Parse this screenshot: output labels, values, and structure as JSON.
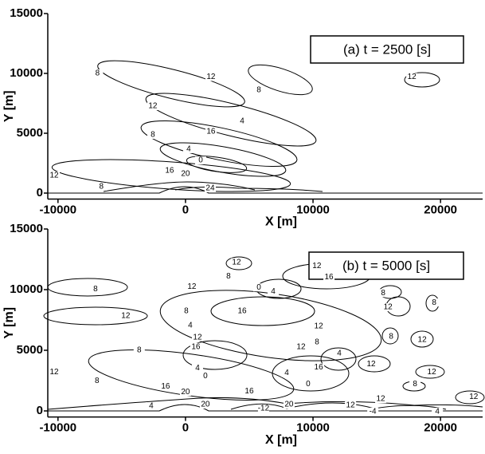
{
  "chart_data": [
    {
      "type": "contour",
      "title": "(a) t = 2500 [s]",
      "x_label": "X [m]",
      "y_label": "Y [m]",
      "xlim": [
        -10800,
        23300
      ],
      "ylim": [
        -500,
        15000
      ],
      "xticks": [
        -10000,
        0,
        10000,
        20000
      ],
      "yticks": [
        0,
        5000,
        10000,
        15000
      ],
      "contour_labels": [
        {
          "x": -6900,
          "y": 10000,
          "value": 8
        },
        {
          "x": 2000,
          "y": 9700,
          "value": 12
        },
        {
          "x": 5750,
          "y": 8600,
          "value": 8
        },
        {
          "x": 17750,
          "y": 9700,
          "value": 12
        },
        {
          "x": -2560,
          "y": 7270,
          "value": 12
        },
        {
          "x": 4440,
          "y": 6000,
          "value": 4
        },
        {
          "x": 2000,
          "y": 5130,
          "value": 16
        },
        {
          "x": -2560,
          "y": 4870,
          "value": 8
        },
        {
          "x": -10300,
          "y": 1470,
          "value": 12
        },
        {
          "x": 250,
          "y": 3670,
          "value": 4
        },
        {
          "x": 1190,
          "y": 2730,
          "value": 0
        },
        {
          "x": -1250,
          "y": 1870,
          "value": 16
        },
        {
          "x": 0,
          "y": 1600,
          "value": 20
        },
        {
          "x": -6600,
          "y": 530,
          "value": 8
        },
        {
          "x": 1940,
          "y": 400,
          "value": 24
        }
      ]
    },
    {
      "type": "contour",
      "title": "(b) t = 5000 [s]",
      "x_label": "X [m]",
      "y_label": "Y [m]",
      "xlim": [
        -10800,
        23300
      ],
      "ylim": [
        -500,
        15000
      ],
      "xticks": [
        -10000,
        0,
        10000,
        20000
      ],
      "yticks": [
        0,
        5000,
        10000,
        15000
      ],
      "contour_labels": [
        {
          "x": 4000,
          "y": 12260,
          "value": 12
        },
        {
          "x": 3375,
          "y": 11090,
          "value": 8
        },
        {
          "x": 5750,
          "y": 10180,
          "value": 0
        },
        {
          "x": 6875,
          "y": 9850,
          "value": 4
        },
        {
          "x": 10300,
          "y": 11940,
          "value": 12
        },
        {
          "x": 11250,
          "y": 11020,
          "value": 16
        },
        {
          "x": -7060,
          "y": 10050,
          "value": 8
        },
        {
          "x": 500,
          "y": 10240,
          "value": 12
        },
        {
          "x": 15500,
          "y": 9720,
          "value": 8
        },
        {
          "x": 19500,
          "y": 8940,
          "value": 8
        },
        {
          "x": 15880,
          "y": 8550,
          "value": 12
        },
        {
          "x": 4440,
          "y": 8220,
          "value": 16
        },
        {
          "x": 60,
          "y": 8220,
          "value": 8
        },
        {
          "x": -4690,
          "y": 7830,
          "value": 12
        },
        {
          "x": 10440,
          "y": 6980,
          "value": 12
        },
        {
          "x": 375,
          "y": 7050,
          "value": 4
        },
        {
          "x": 10310,
          "y": 5680,
          "value": 8
        },
        {
          "x": 16130,
          "y": 6130,
          "value": 8
        },
        {
          "x": 940,
          "y": 6070,
          "value": 12
        },
        {
          "x": 810,
          "y": 5280,
          "value": 16
        },
        {
          "x": 18560,
          "y": 5870,
          "value": 12
        },
        {
          "x": 9060,
          "y": 5280,
          "value": 12
        },
        {
          "x": 12060,
          "y": 4760,
          "value": 4
        },
        {
          "x": -3630,
          "y": 5020,
          "value": 8
        },
        {
          "x": 10440,
          "y": 3590,
          "value": 16
        },
        {
          "x": 14560,
          "y": 3850,
          "value": 12
        },
        {
          "x": 940,
          "y": 3520,
          "value": 4
        },
        {
          "x": 7940,
          "y": 3130,
          "value": 4
        },
        {
          "x": 1560,
          "y": 2870,
          "value": 0
        },
        {
          "x": 9620,
          "y": 2220,
          "value": 0
        },
        {
          "x": 19310,
          "y": 3200,
          "value": 12
        },
        {
          "x": -10300,
          "y": 3200,
          "value": 12
        },
        {
          "x": 18000,
          "y": 2220,
          "value": 8
        },
        {
          "x": -1560,
          "y": 2020,
          "value": 16
        },
        {
          "x": 0,
          "y": 1570,
          "value": 20
        },
        {
          "x": 5000,
          "y": 1630,
          "value": 16
        },
        {
          "x": 22600,
          "y": 1170,
          "value": 12
        },
        {
          "x": 15310,
          "y": 980,
          "value": 12
        },
        {
          "x": -6940,
          "y": 2480,
          "value": 8
        },
        {
          "x": 1560,
          "y": 520,
          "value": 20
        },
        {
          "x": 6120,
          "y": 200,
          "value": -12
        },
        {
          "x": 8120,
          "y": 520,
          "value": 20
        },
        {
          "x": 12940,
          "y": 460,
          "value": 12
        },
        {
          "x": -2690,
          "y": 390,
          "value": 4
        },
        {
          "x": 14690,
          "y": -60,
          "value": -4
        },
        {
          "x": 19750,
          "y": -60,
          "value": 4
        }
      ]
    }
  ]
}
